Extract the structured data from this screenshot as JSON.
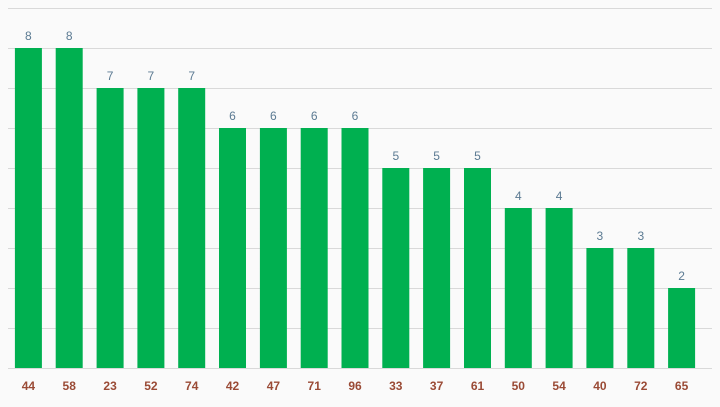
{
  "colors": {
    "bar": "#00b050",
    "value_label": "#5b7a92",
    "tick_label": "#9a4a35",
    "grid": "#d9d9d9",
    "background": "#fafafa"
  },
  "chart_data": {
    "type": "bar",
    "categories": [
      "44",
      "58",
      "23",
      "52",
      "74",
      "42",
      "47",
      "71",
      "96",
      "33",
      "37",
      "61",
      "50",
      "54",
      "40",
      "72",
      "65"
    ],
    "values": [
      8,
      8,
      7,
      7,
      7,
      6,
      6,
      6,
      6,
      5,
      5,
      5,
      4,
      4,
      3,
      3,
      2
    ],
    "title": "",
    "xlabel": "",
    "ylabel": "",
    "ylim": [
      0,
      9
    ],
    "grid": true,
    "legend": "none",
    "data_labels": true
  }
}
